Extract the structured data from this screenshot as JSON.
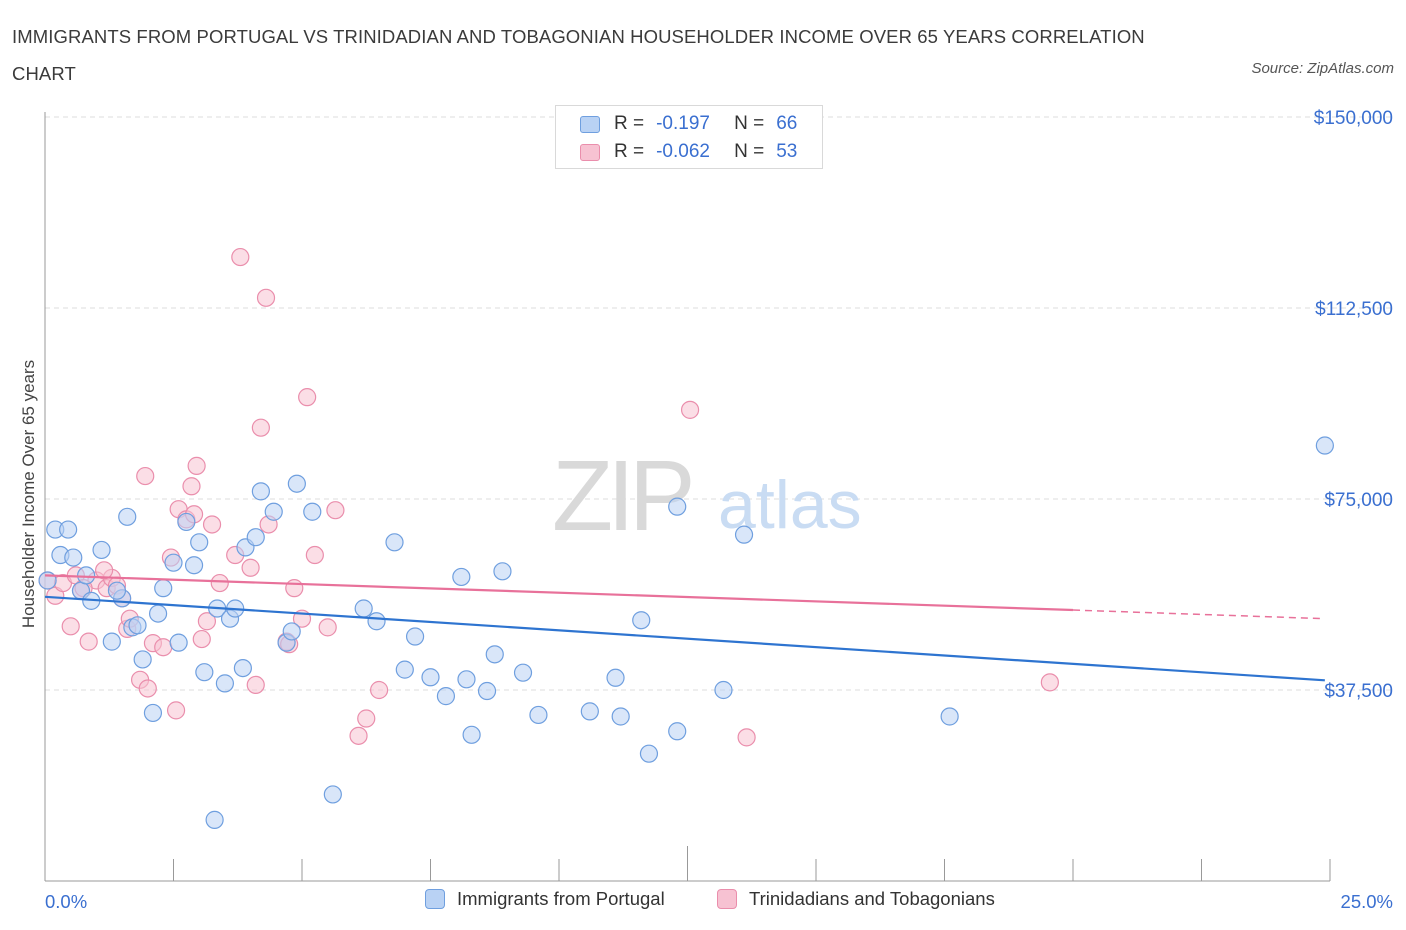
{
  "header": {
    "title": "IMMIGRANTS FROM PORTUGAL VS TRINIDADIAN AND TOBAGONIAN HOUSEHOLDER INCOME OVER 65 YEARS CORRELATION CHART",
    "source": "Source: ZipAtlas.com"
  },
  "watermark": {
    "zip": "ZIP",
    "atlas": "atlas"
  },
  "legend": {
    "rows": [
      {
        "r_label": "R =",
        "r_value": "-0.197",
        "n_label": "N =",
        "n_value": "66"
      },
      {
        "r_label": "R =",
        "r_value": "-0.062",
        "n_label": "N =",
        "n_value": "53"
      }
    ]
  },
  "bottom_legend": {
    "series1": "Immigrants from Portugal",
    "series2": "Trinidadians and Tobagonians"
  },
  "colors": {
    "blue_fill": "#b9d2f4",
    "blue_stroke": "#6f9fdf",
    "blue_line": "#2e74d0",
    "pink_fill": "#f7c2d2",
    "pink_stroke": "#ea8eac",
    "pink_line": "#e8719a",
    "axis_text": "#3a6fd0",
    "grid": "#dcdcdc"
  },
  "chart_data": {
    "type": "scatter",
    "title": "IMMIGRANTS FROM PORTUGAL VS TRINIDADIAN AND TOBAGONIAN HOUSEHOLDER INCOME OVER 65 YEARS CORRELATION CHART",
    "xlabel": "",
    "ylabel": "Householder Income Over 65 years",
    "xlim": [
      0,
      25
    ],
    "ylim": [
      0,
      150000
    ],
    "x_tick_labels": [
      "0.0%",
      "25.0%"
    ],
    "y_ticks": [
      37500,
      75000,
      112500,
      150000
    ],
    "y_tick_labels": [
      "$37,500",
      "$75,000",
      "$112,500",
      "$150,000"
    ],
    "grid": true,
    "series": [
      {
        "name": "Immigrants from Portugal",
        "color": "#6f9fdf",
        "points": [
          [
            0.05,
            59000
          ],
          [
            0.2,
            69000
          ],
          [
            0.45,
            69000
          ],
          [
            0.3,
            64000
          ],
          [
            0.55,
            63500
          ],
          [
            0.7,
            57000
          ],
          [
            0.8,
            60000
          ],
          [
            0.9,
            55000
          ],
          [
            1.1,
            65000
          ],
          [
            1.3,
            47000
          ],
          [
            1.5,
            55500
          ],
          [
            1.6,
            71500
          ],
          [
            1.7,
            49800
          ],
          [
            1.8,
            50200
          ],
          [
            1.9,
            43500
          ],
          [
            2.1,
            33000
          ],
          [
            2.2,
            52500
          ],
          [
            2.3,
            57500
          ],
          [
            2.5,
            62500
          ],
          [
            2.6,
            46800
          ],
          [
            2.75,
            70500
          ],
          [
            2.9,
            62000
          ],
          [
            3.0,
            66500
          ],
          [
            3.1,
            41000
          ],
          [
            3.3,
            12000
          ],
          [
            3.35,
            53500
          ],
          [
            3.5,
            38800
          ],
          [
            3.6,
            51500
          ],
          [
            3.7,
            53500
          ],
          [
            3.85,
            41800
          ],
          [
            3.9,
            65500
          ],
          [
            4.1,
            67500
          ],
          [
            4.2,
            76500
          ],
          [
            4.45,
            72500
          ],
          [
            4.7,
            46800
          ],
          [
            4.8,
            49000
          ],
          [
            4.9,
            78000
          ],
          [
            5.2,
            72500
          ],
          [
            5.6,
            17000
          ],
          [
            6.2,
            53500
          ],
          [
            6.45,
            51000
          ],
          [
            6.8,
            66500
          ],
          [
            7.0,
            41500
          ],
          [
            7.2,
            48000
          ],
          [
            7.5,
            40000
          ],
          [
            7.8,
            36300
          ],
          [
            8.1,
            59700
          ],
          [
            8.2,
            39600
          ],
          [
            8.3,
            28700
          ],
          [
            8.6,
            37300
          ],
          [
            8.75,
            44500
          ],
          [
            8.9,
            60800
          ],
          [
            9.3,
            40900
          ],
          [
            9.6,
            32600
          ],
          [
            10.6,
            33300
          ],
          [
            11.1,
            39900
          ],
          [
            11.2,
            32300
          ],
          [
            11.75,
            25000
          ],
          [
            11.6,
            51200
          ],
          [
            12.3,
            29400
          ],
          [
            12.3,
            73500
          ],
          [
            13.2,
            37500
          ],
          [
            13.6,
            68000
          ],
          [
            17.6,
            32300
          ],
          [
            24.9,
            85500
          ],
          [
            1.4,
            57000
          ]
        ]
      },
      {
        "name": "Trinidadians and Tobagonians",
        "color": "#ea8eac",
        "points": [
          [
            0.05,
            59000
          ],
          [
            0.2,
            56000
          ],
          [
            0.35,
            58500
          ],
          [
            0.5,
            50000
          ],
          [
            0.6,
            60000
          ],
          [
            0.7,
            57000
          ],
          [
            0.85,
            47000
          ],
          [
            1.0,
            59000
          ],
          [
            1.2,
            57500
          ],
          [
            1.3,
            59500
          ],
          [
            1.4,
            58000
          ],
          [
            1.5,
            55500
          ],
          [
            1.6,
            49500
          ],
          [
            1.65,
            51500
          ],
          [
            1.85,
            39500
          ],
          [
            1.95,
            79500
          ],
          [
            2.0,
            37800
          ],
          [
            2.1,
            46700
          ],
          [
            2.3,
            45900
          ],
          [
            2.45,
            63500
          ],
          [
            2.55,
            33500
          ],
          [
            2.6,
            73000
          ],
          [
            2.75,
            71000
          ],
          [
            2.85,
            77500
          ],
          [
            2.95,
            81500
          ],
          [
            3.15,
            51000
          ],
          [
            3.25,
            70000
          ],
          [
            3.4,
            58500
          ],
          [
            3.7,
            64000
          ],
          [
            3.8,
            122500
          ],
          [
            4.0,
            61500
          ],
          [
            4.1,
            38500
          ],
          [
            4.2,
            89000
          ],
          [
            4.3,
            114500
          ],
          [
            4.35,
            70000
          ],
          [
            4.7,
            47000
          ],
          [
            4.75,
            46500
          ],
          [
            4.85,
            57500
          ],
          [
            5.0,
            51500
          ],
          [
            5.1,
            95000
          ],
          [
            5.25,
            64000
          ],
          [
            5.5,
            49800
          ],
          [
            5.65,
            72800
          ],
          [
            6.1,
            28500
          ],
          [
            6.25,
            31900
          ],
          [
            6.5,
            37500
          ],
          [
            12.55,
            92500
          ],
          [
            13.65,
            28200
          ],
          [
            19.55,
            39000
          ],
          [
            1.15,
            61000
          ],
          [
            3.05,
            47500
          ],
          [
            0.75,
            57500
          ],
          [
            2.9,
            72000
          ]
        ]
      }
    ],
    "trendlines": [
      {
        "series": "Immigrants from Portugal",
        "x": [
          0,
          24.9
        ],
        "y": [
          55800,
          39400
        ]
      },
      {
        "series": "Trinidadians and Tobagonians",
        "x": [
          0,
          20.0,
          24.9
        ],
        "y": [
          60000,
          53200,
          51500
        ]
      }
    ]
  }
}
